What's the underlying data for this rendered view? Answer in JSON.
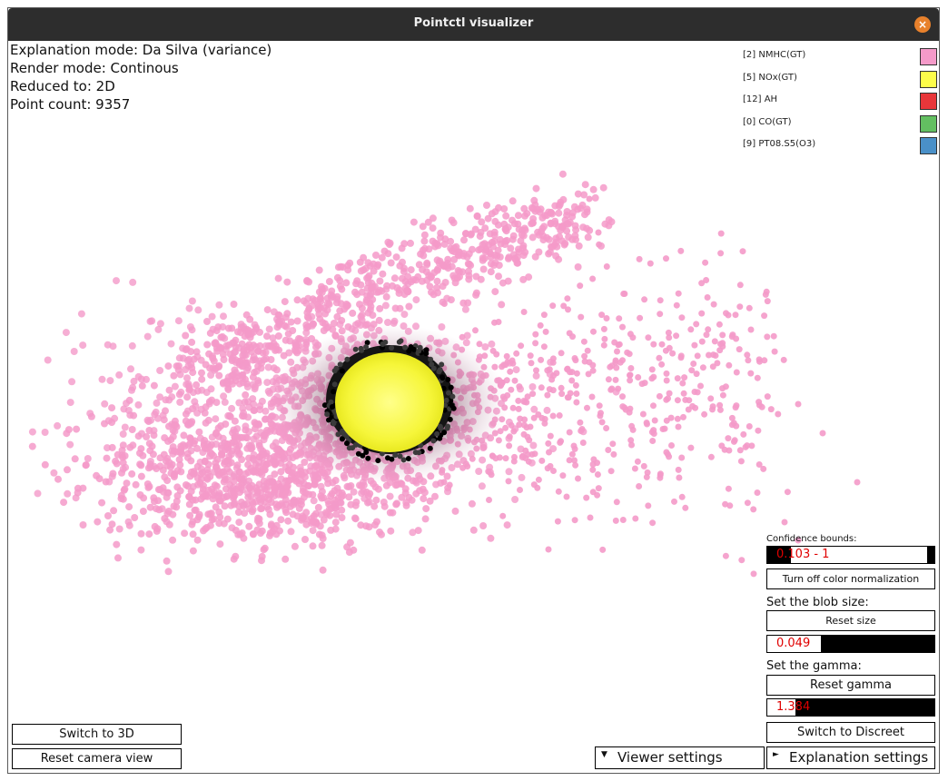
{
  "window": {
    "title": "Pointctl visualizer",
    "close_glyph": "×"
  },
  "info": {
    "explanation_mode": "Explanation mode: Da Silva (variance)",
    "render_mode": "Render mode: Continous",
    "reduced_to": "Reduced to: 2D",
    "point_count": "Point count: 9357"
  },
  "legend": [
    {
      "label": "[2] NMHC(GT)",
      "color": "#f49ac9"
    },
    {
      "label": "[5] NOx(GT)",
      "color": "#fdfd4a"
    },
    {
      "label": "[12] AH",
      "color": "#e8363a"
    },
    {
      "label": "[0] CO(GT)",
      "color": "#63bf61"
    },
    {
      "label": "[9] PT08.S5(O3)",
      "color": "#4a90c8"
    }
  ],
  "controls": {
    "confidence_label": "Confidence bounds:",
    "confidence_value": "0.103 - 1",
    "confidence_range": [
      0.103,
      1
    ],
    "color_norm_button": "Turn off color normalization",
    "blob_label": "Set the blob size:",
    "reset_size_button": "Reset size",
    "blob_value": "0.049",
    "blob_fill_fraction": 0.32,
    "gamma_label": "Set the gamma:",
    "reset_gamma_button": "Reset gamma",
    "gamma_value": "1.384",
    "gamma_fill_fraction": 0.17,
    "switch_discreet_button": "Switch to Discreet",
    "switch_3d_button": "Switch to 3D",
    "reset_camera_button": "Reset camera view",
    "viewer_settings": "Viewer settings",
    "explanation_settings": "Explanation settings",
    "viewer_arrow_icon": "triangle-down-icon",
    "explanation_arrow_icon": "triangle-right-icon"
  }
}
